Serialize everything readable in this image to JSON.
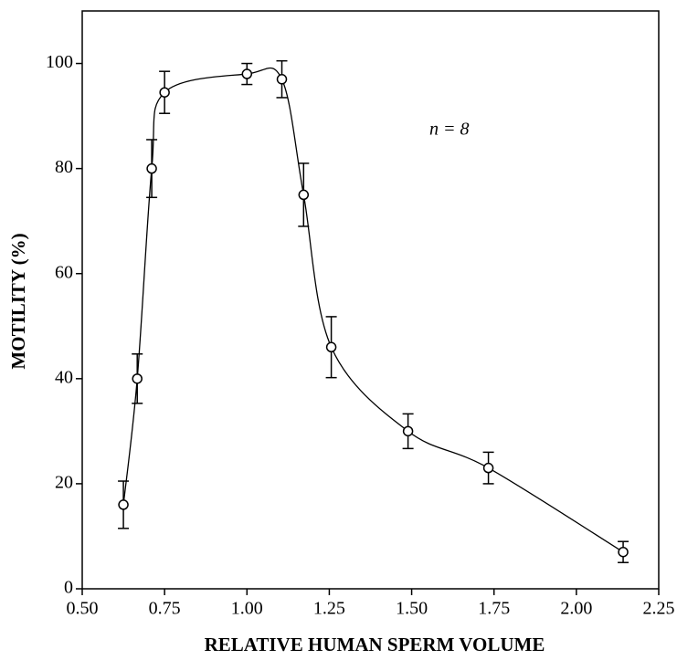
{
  "chart_data": {
    "type": "scatter",
    "xlabel": "RELATIVE HUMAN SPERM VOLUME",
    "ylabel": "MOTILITY (%)",
    "annotation": "n = 8",
    "x": [
      0.625,
      0.667,
      0.711,
      0.75,
      1.0,
      1.106,
      1.172,
      1.256,
      1.489,
      1.733,
      2.142
    ],
    "y": [
      16,
      40,
      80,
      94.5,
      98,
      97,
      75,
      46,
      30,
      23,
      7
    ],
    "yerr": [
      4.5,
      4.7,
      5.5,
      4,
      2,
      3.5,
      6,
      5.8,
      3.3,
      3,
      2
    ],
    "color": "#000000",
    "xlim": [
      0.5,
      2.25
    ],
    "ylim": [
      0,
      110
    ],
    "xticks": [
      {
        "value": 0.5,
        "label": "0.50"
      },
      {
        "value": 0.75,
        "label": "0.75"
      },
      {
        "value": 1.0,
        "label": "1.00"
      },
      {
        "value": 1.25,
        "label": "1.25"
      },
      {
        "value": 1.5,
        "label": "1.50"
      },
      {
        "value": 1.75,
        "label": "1.75"
      },
      {
        "value": 2.0,
        "label": "2.00"
      },
      {
        "value": 2.25,
        "label": "2.25"
      }
    ],
    "yticks": [
      0,
      20,
      40,
      60,
      80,
      100
    ]
  }
}
